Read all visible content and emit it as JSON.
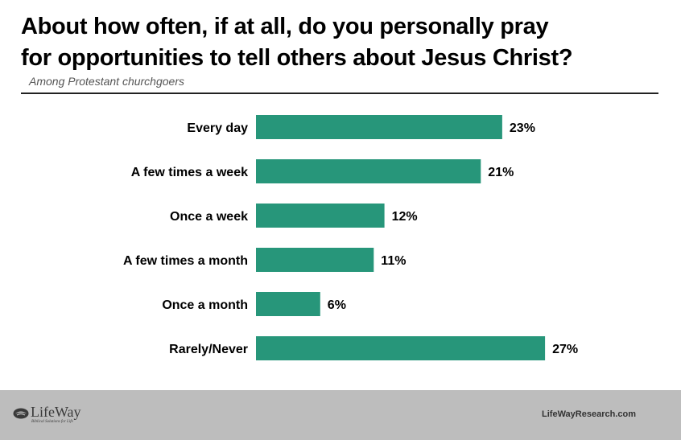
{
  "title": {
    "line1": "About how often, if at all, do you personally pray",
    "line2": "for opportunities to tell others about Jesus Christ?"
  },
  "subtitle": "Among Protestant churchgoers",
  "colors": {
    "bar": "#27967a",
    "footer": "#bdbdbd"
  },
  "chart_data": {
    "type": "bar",
    "orientation": "horizontal",
    "title": "About how often, if at all, do you personally pray for opportunities to tell others about Jesus Christ?",
    "subtitle": "Among Protestant churchgoers",
    "categories": [
      "Every day",
      "A few times a week",
      "Once a week",
      "A few times a month",
      "Once a month",
      "Rarely/Never"
    ],
    "values": [
      23,
      21,
      12,
      11,
      6,
      27
    ],
    "value_labels": [
      "23%",
      "21%",
      "12%",
      "11%",
      "6%",
      "27%"
    ],
    "unit": "%",
    "xlim": [
      0,
      28
    ],
    "grid": false,
    "legend": "none"
  },
  "footer": {
    "logo_name": "LifeWay",
    "logo_tagline": "Biblical Solutions for Life",
    "logo_icon": "lifeway-logo-icon",
    "website": "LifeWayResearch.com"
  }
}
